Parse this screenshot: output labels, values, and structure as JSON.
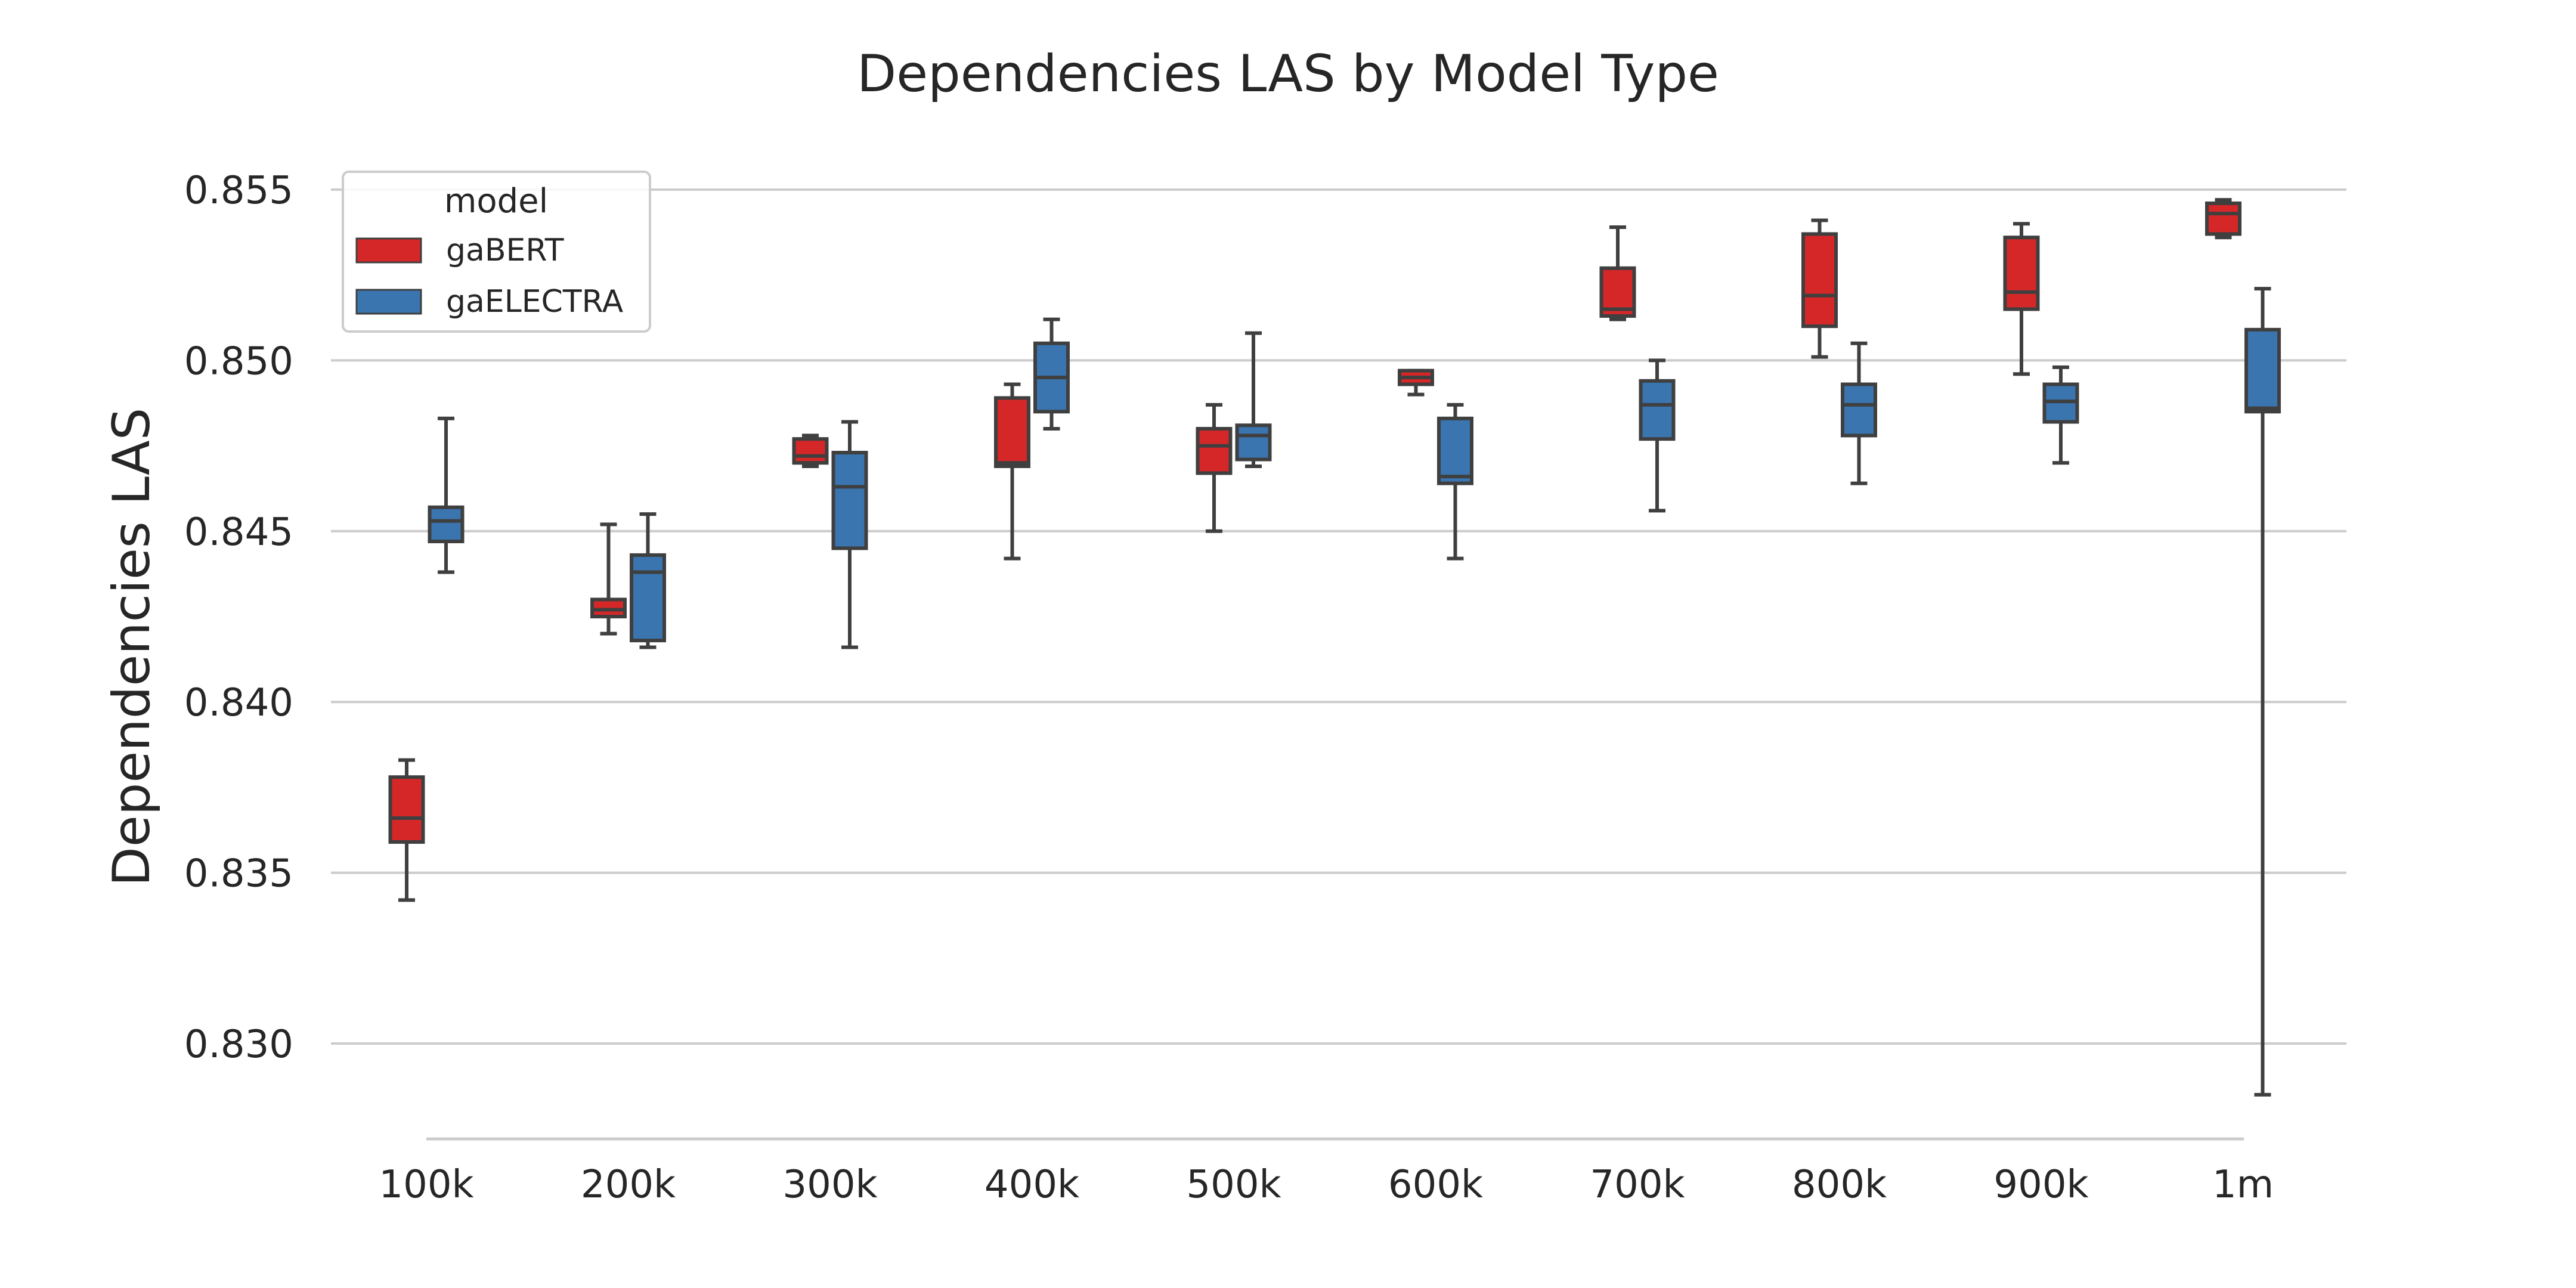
{
  "chart_data": {
    "type": "box",
    "title": "Dependencies LAS by Model Type",
    "xlabel": "",
    "ylabel": "Dependencies LAS",
    "categories": [
      "100k",
      "200k",
      "300k",
      "400k",
      "500k",
      "600k",
      "700k",
      "800k",
      "900k",
      "1m"
    ],
    "yticks": [
      "0.830",
      "0.835",
      "0.840",
      "0.845",
      "0.850",
      "0.855"
    ],
    "ylim": [
      0.827,
      0.856
    ],
    "grid": true,
    "legend": {
      "title": "model",
      "position": "top-left"
    },
    "series": [
      {
        "name": "gaBERT",
        "color": "#d62728",
        "boxes": [
          {
            "min": 0.8342,
            "q1": 0.8359,
            "median": 0.8366,
            "q3": 0.8378,
            "max": 0.8383
          },
          {
            "min": 0.842,
            "q1": 0.8425,
            "median": 0.8427,
            "q3": 0.843,
            "max": 0.8452
          },
          {
            "min": 0.8469,
            "q1": 0.847,
            "median": 0.8472,
            "q3": 0.8477,
            "max": 0.8478
          },
          {
            "min": 0.8442,
            "q1": 0.8469,
            "median": 0.847,
            "q3": 0.8489,
            "max": 0.8493
          },
          {
            "min": 0.845,
            "q1": 0.8467,
            "median": 0.8475,
            "q3": 0.848,
            "max": 0.8487
          },
          {
            "min": 0.849,
            "q1": 0.8493,
            "median": 0.8495,
            "q3": 0.8497,
            "max": 0.8497
          },
          {
            "min": 0.8512,
            "q1": 0.8513,
            "median": 0.8515,
            "q3": 0.8527,
            "max": 0.8539
          },
          {
            "min": 0.8501,
            "q1": 0.851,
            "median": 0.8519,
            "q3": 0.8537,
            "max": 0.8541
          },
          {
            "min": 0.8496,
            "q1": 0.8515,
            "median": 0.852,
            "q3": 0.8536,
            "max": 0.854
          },
          {
            "min": 0.8536,
            "q1": 0.8537,
            "median": 0.8543,
            "q3": 0.8546,
            "max": 0.8547
          }
        ]
      },
      {
        "name": "gaELECTRA",
        "color": "#3a75b0",
        "boxes": [
          {
            "min": 0.8438,
            "q1": 0.8447,
            "median": 0.8453,
            "q3": 0.8457,
            "max": 0.8483
          },
          {
            "min": 0.8416,
            "q1": 0.8418,
            "median": 0.8438,
            "q3": 0.8443,
            "max": 0.8455
          },
          {
            "min": 0.8416,
            "q1": 0.8445,
            "median": 0.8463,
            "q3": 0.8473,
            "max": 0.8482
          },
          {
            "min": 0.848,
            "q1": 0.8485,
            "median": 0.8495,
            "q3": 0.8505,
            "max": 0.8512
          },
          {
            "min": 0.8469,
            "q1": 0.8471,
            "median": 0.8478,
            "q3": 0.8481,
            "max": 0.8508
          },
          {
            "min": 0.8442,
            "q1": 0.8464,
            "median": 0.8466,
            "q3": 0.8483,
            "max": 0.8487
          },
          {
            "min": 0.8456,
            "q1": 0.8477,
            "median": 0.8487,
            "q3": 0.8494,
            "max": 0.85
          },
          {
            "min": 0.8464,
            "q1": 0.8478,
            "median": 0.8487,
            "q3": 0.8493,
            "max": 0.8505
          },
          {
            "min": 0.847,
            "q1": 0.8482,
            "median": 0.8488,
            "q3": 0.8493,
            "max": 0.8498
          },
          {
            "min": 0.8285,
            "q1": 0.8485,
            "median": 0.8486,
            "q3": 0.8509,
            "max": 0.8521
          }
        ]
      }
    ]
  }
}
